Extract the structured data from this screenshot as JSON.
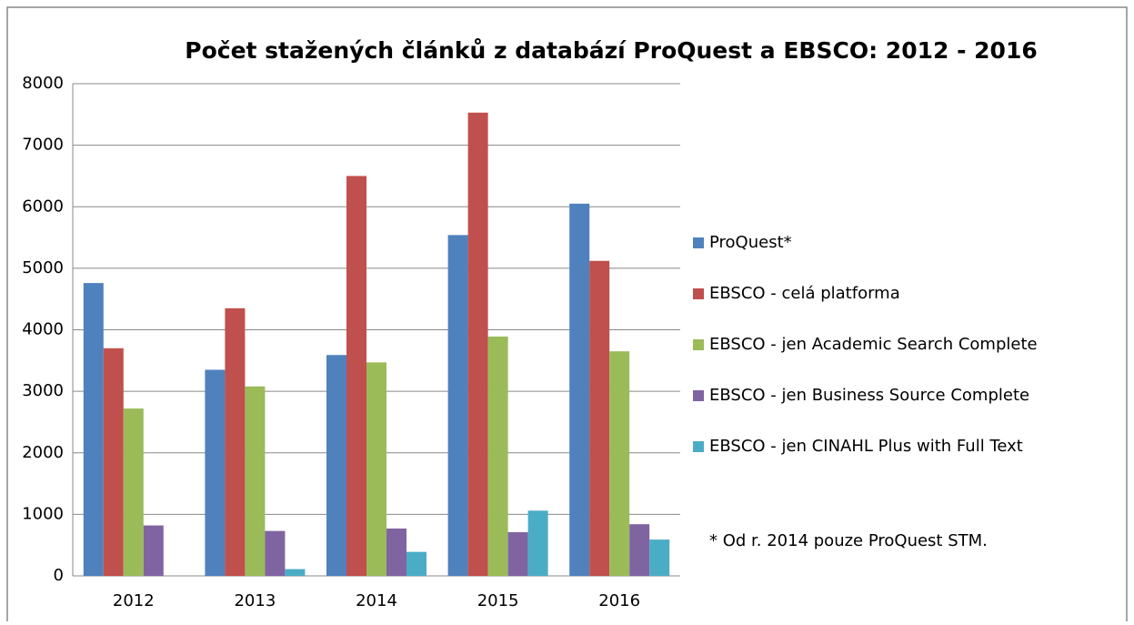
{
  "chart_data": {
    "type": "bar",
    "title": "Počet stažených článků z databází ProQuest a EBSCO: 2012 - 2016",
    "annotation": "* Od r. 2014 pouze ProQuest STM.",
    "categories": [
      "2012",
      "2013",
      "2014",
      "2015",
      "2016"
    ],
    "series": [
      {
        "name": "ProQuest*",
        "color": "#4f81bd",
        "values": [
          4760,
          3350,
          3590,
          5540,
          6050
        ]
      },
      {
        "name": "EBSCO - celá platforma",
        "color": "#c0504d",
        "values": [
          3700,
          4350,
          6500,
          7530,
          5120
        ]
      },
      {
        "name": "EBSCO - jen Academic Search Complete",
        "color": "#9bbb59",
        "values": [
          2720,
          3080,
          3470,
          3890,
          3650
        ]
      },
      {
        "name": "EBSCO - jen Business Source Complete",
        "color": "#8064a2",
        "values": [
          820,
          730,
          770,
          710,
          840
        ]
      },
      {
        "name": "EBSCO - jen CINAHL Plus with Full Text",
        "color": "#4bacc6",
        "values": [
          0,
          110,
          390,
          1060,
          590
        ]
      }
    ],
    "ylim": [
      0,
      8000
    ],
    "yticks": [
      0,
      1000,
      2000,
      3000,
      4000,
      5000,
      6000,
      7000,
      8000
    ],
    "grid": true,
    "legend": "right"
  }
}
